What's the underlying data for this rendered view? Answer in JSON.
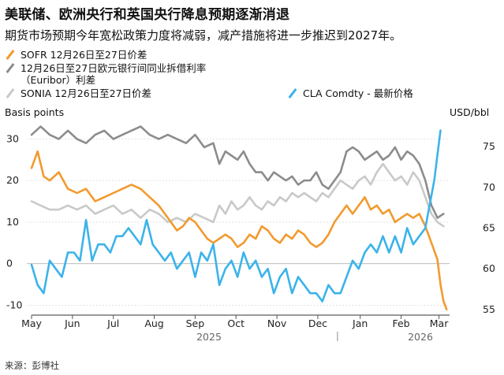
{
  "title": "美联储、欧洲央行和英国央行降息预期逐渐消退",
  "subtitle": "期货市场预期今年宽松政策力度将减弱，减产措施将进一步推迟到2027年。",
  "source": "来源：彭博社",
  "colors": {
    "sofr": "#f29a2e",
    "euribor": "#8c8c8c",
    "sonia": "#c9c9c9",
    "cla": "#3bb3ea"
  },
  "chart_data": {
    "type": "line",
    "title": "美联储、欧洲央行和英国央行降息预期逐渐消退",
    "left_axis": {
      "label": "Basis points",
      "ylim": [
        -12,
        35
      ],
      "ticks": [
        30,
        20,
        10,
        0,
        -10
      ],
      "tick_labels": [
        "30",
        "20",
        "10",
        "0",
        "-10"
      ]
    },
    "right_axis": {
      "label": "USD/bbl",
      "ylim": [
        54.5,
        78.5
      ],
      "ticks": [
        75,
        70,
        65,
        60,
        55
      ],
      "tick_labels": [
        "75",
        "70",
        "65",
        "60",
        "55"
      ]
    },
    "x_axis": {
      "months": [
        "May",
        "Jun",
        "Jul",
        "Aug",
        "Sep",
        "Oct",
        "Nov",
        "Dec",
        "Jan",
        "Feb",
        "Mar"
      ],
      "years": [
        "2025",
        "2026"
      ]
    },
    "series": [
      {
        "key": "sofr",
        "name": "SOFR 12月26日至27日价差",
        "axis": "left",
        "values": [
          [
            0,
            23
          ],
          [
            2,
            27
          ],
          [
            4,
            21
          ],
          [
            6,
            20
          ],
          [
            9,
            22
          ],
          [
            12,
            18
          ],
          [
            15,
            17
          ],
          [
            18,
            18
          ],
          [
            21,
            15
          ],
          [
            24,
            16
          ],
          [
            27,
            17
          ],
          [
            30,
            18
          ],
          [
            33,
            19
          ],
          [
            36,
            18
          ],
          [
            39,
            16
          ],
          [
            42,
            14
          ],
          [
            44,
            12
          ],
          [
            46,
            10
          ],
          [
            48,
            8
          ],
          [
            50,
            9
          ],
          [
            52,
            11
          ],
          [
            54,
            10
          ],
          [
            56,
            8
          ],
          [
            58,
            6
          ],
          [
            60,
            5
          ],
          [
            62,
            6
          ],
          [
            64,
            7
          ],
          [
            66,
            6
          ],
          [
            68,
            4
          ],
          [
            70,
            5
          ],
          [
            72,
            7
          ],
          [
            74,
            6
          ],
          [
            76,
            9
          ],
          [
            78,
            8
          ],
          [
            80,
            6
          ],
          [
            82,
            5
          ],
          [
            84,
            7
          ],
          [
            86,
            6
          ],
          [
            88,
            8
          ],
          [
            90,
            7
          ],
          [
            92,
            5
          ],
          [
            94,
            4
          ],
          [
            96,
            5
          ],
          [
            98,
            7
          ],
          [
            100,
            10
          ],
          [
            102,
            12
          ],
          [
            104,
            14
          ],
          [
            106,
            12
          ],
          [
            108,
            14
          ],
          [
            110,
            16
          ],
          [
            112,
            13
          ],
          [
            114,
            14
          ],
          [
            116,
            12
          ],
          [
            118,
            13
          ],
          [
            120,
            10
          ],
          [
            122,
            11
          ],
          [
            124,
            12
          ],
          [
            126,
            11
          ],
          [
            128,
            12
          ],
          [
            130,
            9
          ],
          [
            132,
            5
          ],
          [
            134,
            1
          ],
          [
            135,
            -5
          ],
          [
            136,
            -9
          ],
          [
            137,
            -11
          ]
        ]
      },
      {
        "key": "euribor",
        "name": "12月26日至27日欧元银行间同业拆借利率（Euribor）利差",
        "axis": "left",
        "values": [
          [
            0,
            31
          ],
          [
            3,
            33
          ],
          [
            6,
            31
          ],
          [
            9,
            30
          ],
          [
            12,
            32
          ],
          [
            15,
            30
          ],
          [
            18,
            29
          ],
          [
            21,
            31
          ],
          [
            24,
            32
          ],
          [
            27,
            30
          ],
          [
            30,
            31
          ],
          [
            33,
            32
          ],
          [
            36,
            33
          ],
          [
            39,
            31
          ],
          [
            42,
            30
          ],
          [
            45,
            31
          ],
          [
            48,
            30
          ],
          [
            51,
            29
          ],
          [
            54,
            31
          ],
          [
            57,
            28
          ],
          [
            60,
            29
          ],
          [
            62,
            24
          ],
          [
            64,
            27
          ],
          [
            66,
            26
          ],
          [
            68,
            25
          ],
          [
            70,
            27
          ],
          [
            72,
            24
          ],
          [
            74,
            22
          ],
          [
            76,
            22
          ],
          [
            78,
            20
          ],
          [
            80,
            22
          ],
          [
            82,
            21
          ],
          [
            84,
            20
          ],
          [
            86,
            21
          ],
          [
            88,
            19
          ],
          [
            90,
            20
          ],
          [
            92,
            20
          ],
          [
            94,
            22
          ],
          [
            96,
            19
          ],
          [
            98,
            18
          ],
          [
            100,
            20
          ],
          [
            102,
            22
          ],
          [
            104,
            27
          ],
          [
            106,
            28
          ],
          [
            108,
            27
          ],
          [
            110,
            25
          ],
          [
            112,
            26
          ],
          [
            114,
            27
          ],
          [
            116,
            25
          ],
          [
            118,
            26
          ],
          [
            120,
            28
          ],
          [
            122,
            25
          ],
          [
            124,
            27
          ],
          [
            126,
            26
          ],
          [
            128,
            24
          ],
          [
            130,
            20
          ],
          [
            132,
            14
          ],
          [
            134,
            11
          ],
          [
            136,
            12
          ]
        ]
      },
      {
        "key": "sonia",
        "name": "SONIA 12月26日至27日价差",
        "axis": "left",
        "values": [
          [
            0,
            15
          ],
          [
            3,
            14
          ],
          [
            6,
            13
          ],
          [
            9,
            13
          ],
          [
            12,
            14
          ],
          [
            15,
            13
          ],
          [
            18,
            14
          ],
          [
            21,
            12
          ],
          [
            24,
            13
          ],
          [
            27,
            14
          ],
          [
            30,
            12
          ],
          [
            33,
            13
          ],
          [
            36,
            11
          ],
          [
            39,
            13
          ],
          [
            42,
            12
          ],
          [
            45,
            10
          ],
          [
            48,
            11
          ],
          [
            51,
            10
          ],
          [
            54,
            12
          ],
          [
            57,
            11
          ],
          [
            60,
            10
          ],
          [
            62,
            14
          ],
          [
            64,
            12
          ],
          [
            66,
            15
          ],
          [
            68,
            13
          ],
          [
            70,
            14
          ],
          [
            72,
            16
          ],
          [
            74,
            14
          ],
          [
            76,
            13
          ],
          [
            78,
            15
          ],
          [
            80,
            14
          ],
          [
            82,
            16
          ],
          [
            84,
            15
          ],
          [
            86,
            17
          ],
          [
            88,
            16
          ],
          [
            90,
            17
          ],
          [
            92,
            16
          ],
          [
            94,
            15
          ],
          [
            96,
            17
          ],
          [
            98,
            16
          ],
          [
            100,
            18
          ],
          [
            102,
            20
          ],
          [
            104,
            19
          ],
          [
            106,
            18
          ],
          [
            108,
            20
          ],
          [
            110,
            21
          ],
          [
            112,
            19
          ],
          [
            114,
            22
          ],
          [
            116,
            24
          ],
          [
            118,
            22
          ],
          [
            120,
            20
          ],
          [
            122,
            21
          ],
          [
            124,
            19
          ],
          [
            126,
            22
          ],
          [
            128,
            20
          ],
          [
            130,
            16
          ],
          [
            132,
            12
          ],
          [
            134,
            10
          ],
          [
            136,
            9
          ]
        ]
      },
      {
        "key": "cla",
        "name": "CLA Comdty - 最新价格",
        "axis": "right",
        "values": [
          [
            0,
            60.5
          ],
          [
            2,
            58
          ],
          [
            4,
            57
          ],
          [
            6,
            61
          ],
          [
            8,
            60
          ],
          [
            10,
            59
          ],
          [
            12,
            62
          ],
          [
            14,
            62
          ],
          [
            16,
            61
          ],
          [
            18,
            66
          ],
          [
            20,
            61
          ],
          [
            22,
            63
          ],
          [
            24,
            63
          ],
          [
            26,
            62
          ],
          [
            28,
            64
          ],
          [
            30,
            64
          ],
          [
            32,
            65
          ],
          [
            34,
            64
          ],
          [
            36,
            63
          ],
          [
            38,
            66
          ],
          [
            40,
            63
          ],
          [
            42,
            62
          ],
          [
            44,
            61
          ],
          [
            46,
            62
          ],
          [
            48,
            60
          ],
          [
            50,
            61
          ],
          [
            52,
            62
          ],
          [
            54,
            59
          ],
          [
            56,
            62
          ],
          [
            58,
            61
          ],
          [
            60,
            63
          ],
          [
            62,
            58
          ],
          [
            64,
            60
          ],
          [
            66,
            61
          ],
          [
            68,
            59
          ],
          [
            70,
            62
          ],
          [
            72,
            60
          ],
          [
            74,
            61
          ],
          [
            76,
            59
          ],
          [
            78,
            60
          ],
          [
            80,
            57
          ],
          [
            82,
            59
          ],
          [
            84,
            60
          ],
          [
            86,
            57
          ],
          [
            88,
            59
          ],
          [
            90,
            58
          ],
          [
            92,
            57
          ],
          [
            94,
            57
          ],
          [
            96,
            56
          ],
          [
            98,
            58
          ],
          [
            100,
            57
          ],
          [
            102,
            57
          ],
          [
            104,
            59
          ],
          [
            106,
            61
          ],
          [
            108,
            60
          ],
          [
            110,
            62
          ],
          [
            112,
            63
          ],
          [
            114,
            62
          ],
          [
            116,
            64
          ],
          [
            118,
            62
          ],
          [
            120,
            64
          ],
          [
            122,
            62
          ],
          [
            124,
            65
          ],
          [
            126,
            63
          ],
          [
            128,
            64
          ],
          [
            130,
            65
          ],
          [
            131,
            67
          ],
          [
            132,
            69
          ],
          [
            133,
            71
          ],
          [
            134,
            74
          ],
          [
            135,
            77
          ]
        ]
      }
    ],
    "legend_labels": {
      "sofr": "SOFR 12月26日至27日价差",
      "euribor_line1": "12月26日至27日欧元银行间同业拆借利率",
      "euribor_line2": "（Euribor）利差",
      "sonia": "SONIA 12月26日至27日价差",
      "cla": "CLA Comdty - 最新价格"
    }
  }
}
